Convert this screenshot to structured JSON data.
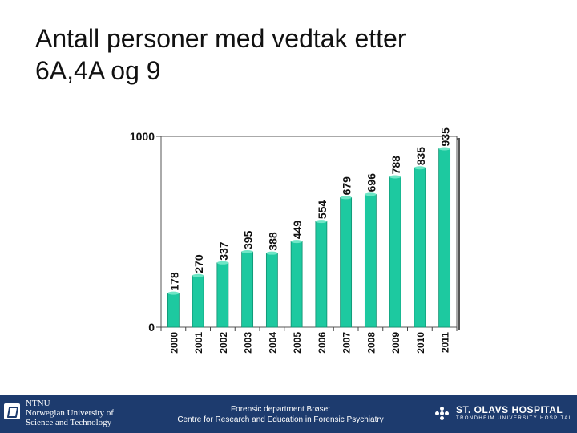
{
  "slide": {
    "title_line1": "Antall personer med vedtak etter",
    "title_line2": "6A,4A og 9"
  },
  "chart_data": {
    "type": "bar",
    "categories": [
      "2000",
      "2001",
      "2002",
      "2003",
      "2004",
      "2005",
      "2006",
      "2007",
      "2008",
      "2009",
      "2010",
      "2011"
    ],
    "values": [
      178,
      270,
      337,
      395,
      388,
      449,
      554,
      679,
      696,
      788,
      835,
      935
    ],
    "data_labels": [
      "178",
      "270",
      "337",
      "395",
      "388",
      "449",
      "554",
      "679",
      "696",
      "788",
      "835",
      "935"
    ],
    "ylim": [
      0,
      1000
    ],
    "yticks": [
      0,
      1000
    ],
    "ytick_labels": [
      "0",
      "1000"
    ],
    "grid": false,
    "legend": "none",
    "bar_color": "#1dc9a0",
    "bar_edge_color": "#0f8f6f",
    "title": "",
    "xlabel": "",
    "ylabel": ""
  },
  "footer": {
    "ntnu_line1": "NTNU",
    "ntnu_line2": "Norwegian University of",
    "ntnu_line3": "Science and Technology",
    "center_line1": "Forensic department Brøset",
    "center_line2": "Centre for Research and Education in Forensic Psychiatry",
    "hospital_name": "ST. OLAVS HOSPITAL",
    "hospital_sub": "TRONDHEIM UNIVERSITY HOSPITAL",
    "bg_color": "#1d3b6e"
  }
}
